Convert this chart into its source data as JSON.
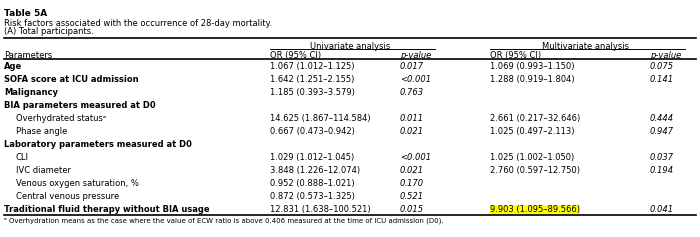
{
  "title": "Table 5A",
  "subtitle1": "Risk factors associated with the occurrence of 28-day mortality.",
  "subtitle2": "(A) Total participants.",
  "footnote": "ᵃ Overhydration means as the case where the value of ECW ratio is above 0.406 measured at the time of ICU admission (D0).",
  "col_headers": [
    "Parameters",
    "OR (95% CI)",
    "p-value",
    "OR (95% CI)",
    "p-value"
  ],
  "group_headers": [
    "Univariate analysis",
    "Multivariate analysis"
  ],
  "rows": [
    {
      "param": "Age",
      "bold": true,
      "indent": false,
      "uni_or": "1.067 (1.012–1.125)",
      "uni_p": "0.017",
      "multi_or": "1.069 (0.993–1.150)",
      "multi_p": "0.075"
    },
    {
      "param": "SOFA score at ICU admission",
      "bold": true,
      "indent": false,
      "uni_or": "1.642 (1.251–2.155)",
      "uni_p": "<0.001",
      "multi_or": "1.288 (0.919–1.804)",
      "multi_p": "0.141"
    },
    {
      "param": "Malignancy",
      "bold": true,
      "indent": false,
      "uni_or": "1.185 (0.393–3.579)",
      "uni_p": "0.763",
      "multi_or": "",
      "multi_p": ""
    },
    {
      "param": "BIA parameters measured at D0",
      "bold": true,
      "indent": false,
      "uni_or": "",
      "uni_p": "",
      "multi_or": "",
      "multi_p": ""
    },
    {
      "param": "Overhydrated statusᵃ",
      "bold": false,
      "indent": true,
      "uni_or": "14.625 (1.867–114.584)",
      "uni_p": "0.011",
      "multi_or": "2.661 (0.217–32.646)",
      "multi_p": "0.444"
    },
    {
      "param": "Phase angle",
      "bold": false,
      "indent": true,
      "uni_or": "0.667 (0.473–0.942)",
      "uni_p": "0.021",
      "multi_or": "1.025 (0.497–2.113)",
      "multi_p": "0.947"
    },
    {
      "param": "Laboratory parameters measured at D0",
      "bold": true,
      "indent": false,
      "uni_or": "",
      "uni_p": "",
      "multi_or": "",
      "multi_p": ""
    },
    {
      "param": "CLI",
      "bold": false,
      "indent": true,
      "uni_or": "1.029 (1.012–1.045)",
      "uni_p": "<0.001",
      "multi_or": "1.025 (1.002–1.050)",
      "multi_p": "0.037"
    },
    {
      "param": "IVC diameter",
      "bold": false,
      "indent": true,
      "uni_or": "3.848 (1.226–12.074)",
      "uni_p": "0.021",
      "multi_or": "2.760 (0.597–12.750)",
      "multi_p": "0.194"
    },
    {
      "param": "Venous oxygen saturation, %",
      "bold": false,
      "indent": true,
      "uni_or": "0.952 (0.888–1.021)",
      "uni_p": "0.170",
      "multi_or": "",
      "multi_p": ""
    },
    {
      "param": "Central venous pressure",
      "bold": false,
      "indent": true,
      "uni_or": "0.872 (0.573–1.325)",
      "uni_p": "0.521",
      "multi_or": "",
      "multi_p": ""
    },
    {
      "param": "Traditional fluid therapy without BIA usage",
      "bold": true,
      "indent": false,
      "uni_or": "12.831 (1.638–100.521)",
      "uni_p": "0.015",
      "multi_or": "9.903 (1.095–89.566)",
      "multi_p": "0.041",
      "highlight_multi_or": true
    }
  ],
  "highlight_color": "#FFFF00"
}
